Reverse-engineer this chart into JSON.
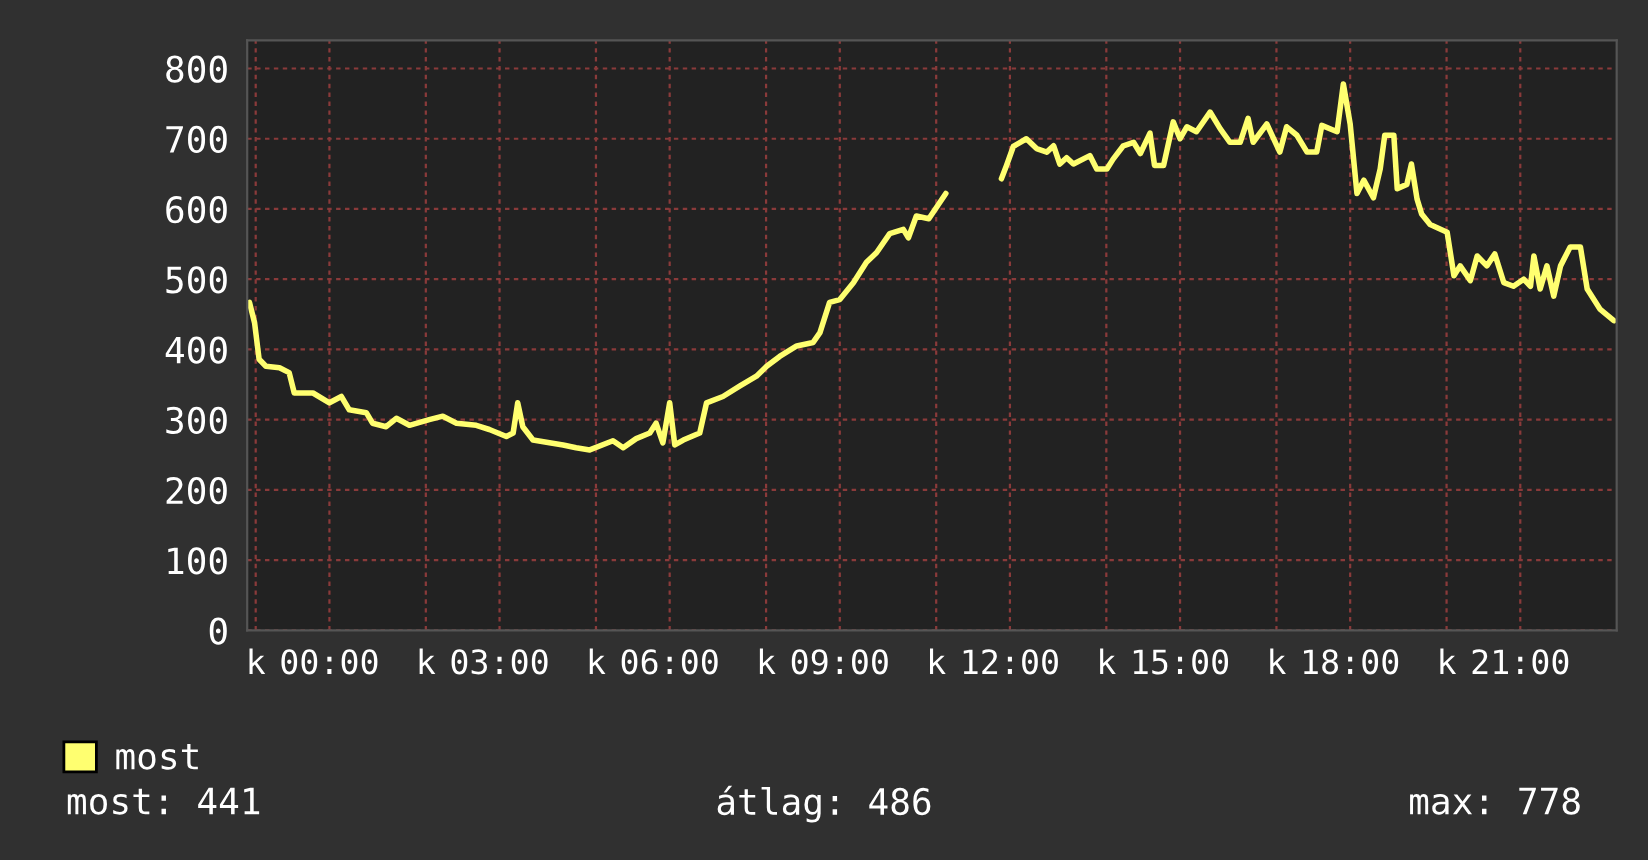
{
  "chart_data": {
    "type": "line",
    "x": [
      -1.41,
      -1.32,
      -1.24,
      -1.12,
      -0.88,
      -0.71,
      -0.62,
      -0.29,
      0,
      0.21,
      0.35,
      0.65,
      0.76,
      1.0,
      1.18,
      1.41,
      1.76,
      2.0,
      2.24,
      2.59,
      2.82,
      3.12,
      3.24,
      3.32,
      3.41,
      3.59,
      3.88,
      4.12,
      4.35,
      4.59,
      5.0,
      5.18,
      5.41,
      5.65,
      5.76,
      5.88,
      6.0,
      6.09,
      6.24,
      6.53,
      6.65,
      6.94,
      7.24,
      7.53,
      7.71,
      7.94,
      8.24,
      8.53,
      8.65,
      8.82,
      9.0,
      9.24,
      9.47,
      9.65,
      9.88,
      10.12,
      10.21,
      10.35,
      10.57,
      10.87,
      11.3,
      11.85,
      11.94,
      12.06,
      12.29,
      12.47,
      12.65,
      12.77,
      12.88,
      13.0,
      13.12,
      13.41,
      13.53,
      13.71,
      13.82,
      14.0,
      14.18,
      14.3,
      14.47,
      14.55,
      14.71,
      14.88,
      15.0,
      15.12,
      15.29,
      15.53,
      15.71,
      15.88,
      16.06,
      16.2,
      16.29,
      16.53,
      16.76,
      16.88,
      17.06,
      17.24,
      17.41,
      17.5,
      17.77,
      17.88,
      18.0,
      18.12,
      18.24,
      18.41,
      18.53,
      18.61,
      18.77,
      18.83,
      19.0,
      19.08,
      19.18,
      19.26,
      19.41,
      19.71,
      19.83,
      19.94,
      20.12,
      20.24,
      20.41,
      20.55,
      20.71,
      20.88,
      21.06,
      21.18,
      21.24,
      21.35,
      21.47,
      21.59,
      21.71,
      21.88,
      22.06,
      22.18,
      22.41,
      22.65
    ],
    "series": [
      {
        "name": "most",
        "color": "#ffff70",
        "values": [
          467,
          438,
          386,
          376,
          374,
          367,
          338,
          338,
          324,
          333,
          314,
          310,
          295,
          290,
          302,
          292,
          300,
          305,
          295,
          292,
          286,
          276,
          281,
          324,
          290,
          271,
          267,
          264,
          260,
          257,
          270,
          260,
          273,
          281,
          295,
          267,
          324,
          264,
          271,
          281,
          324,
          333,
          348,
          362,
          376,
          390,
          405,
          410,
          424,
          467,
          471,
          495,
          524,
          538,
          565,
          571,
          559,
          590,
          586,
          622,
          null,
          643,
          662,
          689,
          700,
          686,
          681,
          690,
          664,
          673,
          664,
          676,
          657,
          657,
          671,
          690,
          695,
          679,
          708,
          662,
          662,
          724,
          700,
          717,
          710,
          738,
          714,
          695,
          695,
          729,
          695,
          721,
          681,
          717,
          705,
          681,
          681,
          719,
          710,
          778,
          721,
          622,
          641,
          616,
          657,
          705,
          705,
          629,
          635,
          664,
          614,
          593,
          578,
          567,
          505,
          519,
          498,
          533,
          519,
          536,
          495,
          490,
          500,
          490,
          533,
          486,
          519,
          476,
          519,
          546,
          546,
          486,
          457,
          441
        ]
      }
    ],
    "xlim": [
      -1.45,
      22.7
    ],
    "xticks": [
      {
        "value": -1.3,
        "label": "k"
      },
      {
        "value": 0,
        "label": "00:00"
      },
      {
        "value": 1.7,
        "label": "k"
      },
      {
        "value": 3,
        "label": "03:00"
      },
      {
        "value": 4.7,
        "label": "k"
      },
      {
        "value": 6,
        "label": "06:00"
      },
      {
        "value": 7.7,
        "label": "k"
      },
      {
        "value": 9,
        "label": "09:00"
      },
      {
        "value": 10.7,
        "label": "k"
      },
      {
        "value": 12,
        "label": "12:00"
      },
      {
        "value": 13.7,
        "label": "k"
      },
      {
        "value": 15,
        "label": "15:00"
      },
      {
        "value": 16.7,
        "label": "k"
      },
      {
        "value": 18,
        "label": "18:00"
      },
      {
        "value": 19.7,
        "label": "k"
      },
      {
        "value": 21,
        "label": "21:00"
      }
    ],
    "ylim": [
      0,
      840
    ],
    "yticks": [
      0,
      100,
      200,
      300,
      400,
      500,
      600,
      700,
      800
    ],
    "grid": true,
    "legend": "bottom left",
    "annotations": [
      "most: 441",
      "átlag: 486",
      "max: 778"
    ]
  }
}
